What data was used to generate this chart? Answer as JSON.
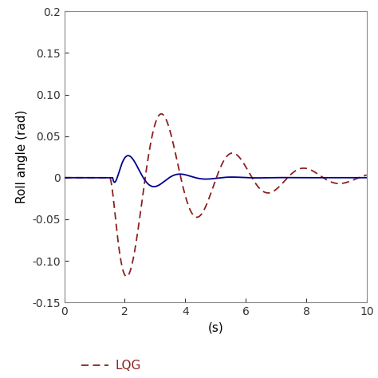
{
  "title": "",
  "xlabel": "(s)",
  "ylabel": "Roll angle (rad)",
  "xlim": [
    0,
    10
  ],
  "ylim": [
    -0.15,
    0.2
  ],
  "yticks": [
    -0.15,
    -0.1,
    -0.05,
    0.0,
    0.05,
    0.1,
    0.15,
    0.2
  ],
  "xticks": [
    0,
    2,
    4,
    6,
    8,
    10
  ],
  "blue_color": "#00008B",
  "red_color": "#8B2020",
  "legend_label_lqg": "LQG",
  "background_color": "#ffffff",
  "figsize": [
    4.74,
    4.74
  ],
  "dpi": 100
}
